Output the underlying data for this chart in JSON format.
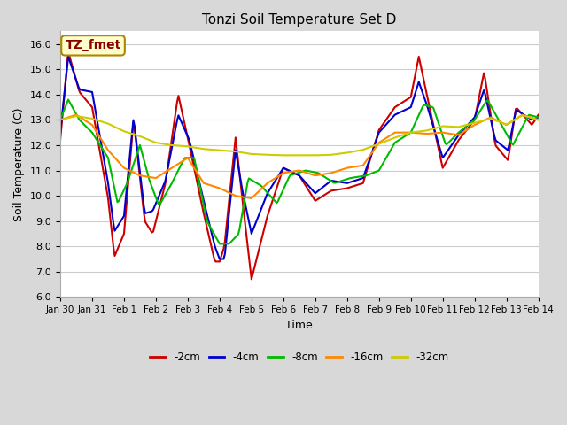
{
  "title": "Tonzi Soil Temperature Set D",
  "xlabel": "Time",
  "ylabel": "Soil Temperature (C)",
  "ylim": [
    6.0,
    16.5
  ],
  "yticks": [
    6.0,
    7.0,
    8.0,
    9.0,
    10.0,
    11.0,
    12.0,
    13.0,
    14.0,
    15.0,
    16.0
  ],
  "legend_label": "TZ_fmet",
  "series_labels": [
    "-2cm",
    "-4cm",
    "-8cm",
    "-16cm",
    "-32cm"
  ],
  "series_colors": [
    "#cc0000",
    "#0000cc",
    "#00bb00",
    "#ff8800",
    "#cccc00"
  ],
  "outer_bg": "#d8d8d8",
  "plot_bg": "#ffffff",
  "xtick_labels": [
    "Jan 30",
    "Jan 31",
    "Feb 1",
    "Feb 2",
    "Feb 3",
    "Feb 4",
    "Feb 5",
    "Feb 6",
    "Feb 7",
    "Feb 8",
    "Feb 9",
    "Feb 10",
    "Feb 11",
    "Feb 12",
    "Feb 13",
    "Feb 14"
  ],
  "linewidth": 1.5,
  "title_fontsize": 11,
  "axis_fontsize": 9,
  "tick_fontsize": 7.5
}
